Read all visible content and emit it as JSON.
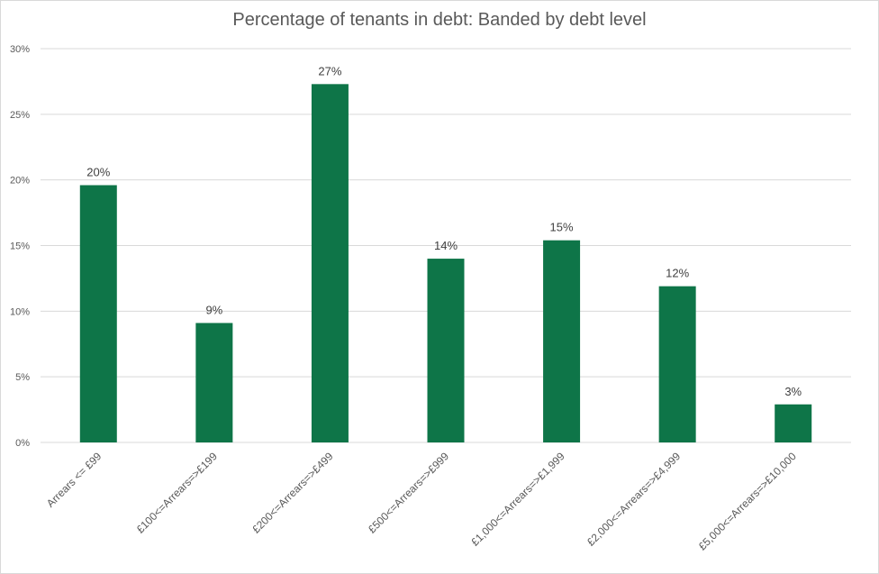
{
  "chart_data": {
    "type": "bar",
    "title": "Percentage of tenants in debt: Banded by debt level",
    "categories": [
      "Arrears <= £99",
      "£100<=Arrears=>£199",
      "£200<=Arrears=>£499",
      "£500<=Arrears=>£999",
      "£1,000<=Arrears=>£1,999",
      "£2,000<=Arrears=>£4,999",
      "£5,000<=Arrears=>£10,000"
    ],
    "values": [
      19.6,
      9.1,
      27.3,
      14.0,
      15.4,
      11.9,
      2.9
    ],
    "data_labels": [
      "20%",
      "9%",
      "27%",
      "14%",
      "15%",
      "12%",
      "3%"
    ],
    "ylim": [
      0,
      30
    ],
    "yticks": [
      0,
      5,
      10,
      15,
      20,
      25,
      30
    ],
    "ytick_labels": [
      "0%",
      "5%",
      "10%",
      "15%",
      "20%",
      "25%",
      "30%"
    ],
    "grid": true,
    "legend": "none",
    "colors": {
      "bar": "#0e7548",
      "grid": "#d9d9d9",
      "text": "#595959"
    }
  }
}
